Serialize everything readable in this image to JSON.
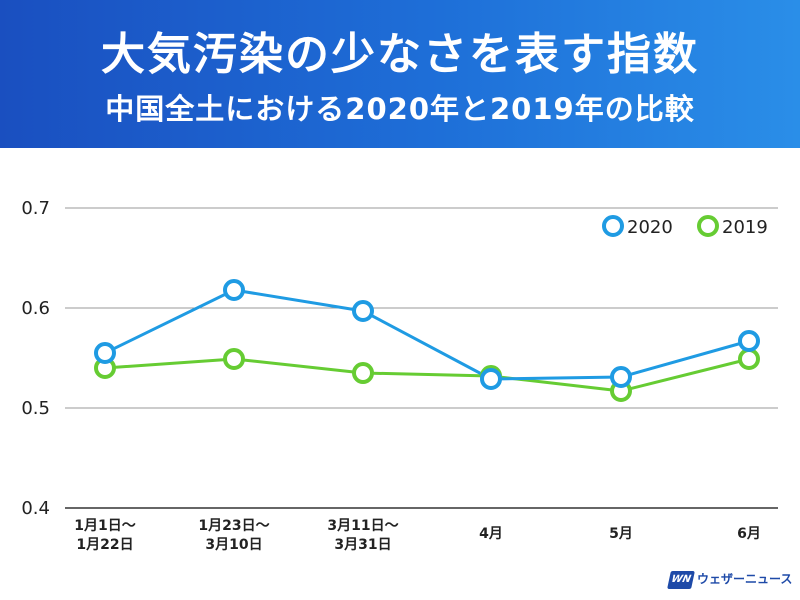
{
  "header": {
    "title": "大気汚染の少なさを表す指数",
    "subtitle": "中国全土における2020年と2019年の比較"
  },
  "colors": {
    "header_start": "#1a4fc0",
    "header_end": "#2a8ee8",
    "series_2020": "#1f9be3",
    "series_2019": "#66cc33"
  },
  "chart_data": {
    "type": "line",
    "categories": [
      [
        "1月1日〜",
        "1月22日"
      ],
      [
        "1月23日〜",
        "3月10日"
      ],
      [
        "3月11日〜",
        "3月31日"
      ],
      [
        "4月"
      ],
      [
        "5月"
      ],
      [
        "6月"
      ]
    ],
    "series": [
      {
        "name": "2020",
        "color": "#1f9be3",
        "values": [
          0.555,
          0.618,
          0.597,
          0.529,
          0.531,
          0.567
        ]
      },
      {
        "name": "2019",
        "color": "#66cc33",
        "values": [
          0.54,
          0.549,
          0.535,
          0.532,
          0.517,
          0.549
        ]
      }
    ],
    "ylim": [
      0.4,
      0.7
    ],
    "yticks": [
      "0.4",
      "0.5",
      "0.6",
      "0.7"
    ],
    "ytick_values": [
      0.4,
      0.5,
      0.6,
      0.7
    ],
    "grid": true,
    "legend_position": "top-right",
    "marker": "open-circle"
  },
  "footer": {
    "logo_badge": "WN",
    "logo_text": "ウェザーニュース"
  }
}
